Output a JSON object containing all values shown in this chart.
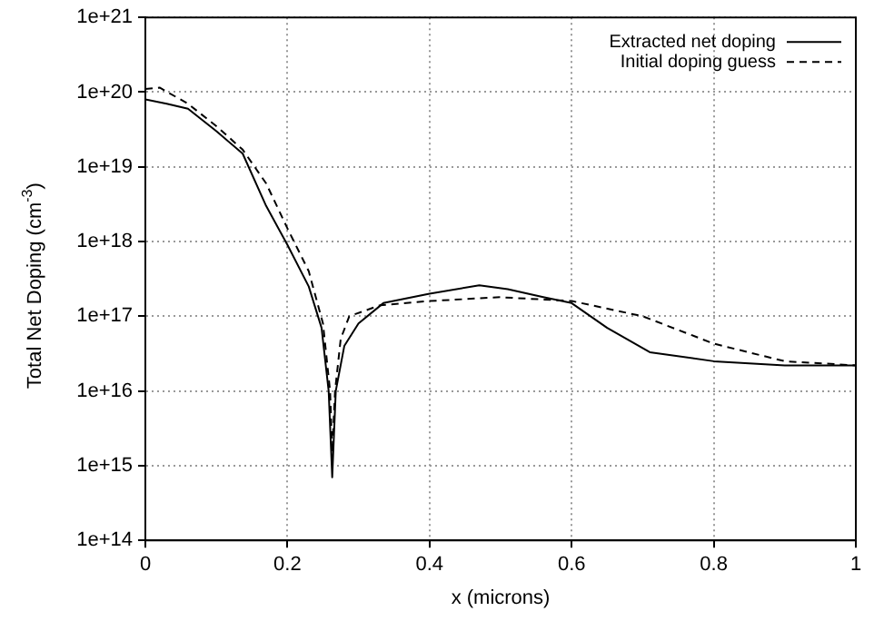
{
  "chart_data": {
    "type": "line",
    "xlabel": "x (microns)",
    "ylabel": "Total Net Doping (cm$^{-3}$)",
    "series": [
      {
        "name": "Extracted net doping",
        "color": "#000000",
        "line_style": "solid",
        "x": [
          0,
          0.03,
          0.06,
          0.1,
          0.137,
          0.17,
          0.2,
          0.23,
          0.248,
          0.258,
          0.263,
          0.268,
          0.28,
          0.3,
          0.335,
          0.4,
          0.47,
          0.51,
          0.56,
          0.6,
          0.65,
          0.71,
          0.8,
          0.9,
          1
        ],
        "values": [
          8e+19,
          7e+19,
          6e+19,
          3e+19,
          1.5e+19,
          3e+18,
          9e+17,
          2.5e+17,
          7e+16,
          1e+16,
          700000000000000.0,
          1e+16,
          4e+16,
          8e+16,
          1.5e+17,
          2e+17,
          2.6e+17,
          2.3e+17,
          1.8e+17,
          1.5e+17,
          7e+16,
          3.3e+16,
          2.5e+16,
          2.2e+16,
          2.2e+16
        ]
      },
      {
        "name": "Initial doping guess",
        "color": "#000000",
        "line_style": "dashed",
        "x": [
          0,
          0.02,
          0.06,
          0.1,
          0.137,
          0.17,
          0.2,
          0.23,
          0.25,
          0.26,
          0.263,
          0.267,
          0.275,
          0.287,
          0.33,
          0.4,
          0.5,
          0.6,
          0.7,
          0.8,
          0.9,
          1
        ],
        "values": [
          1.1e+20,
          1.15e+20,
          7e+19,
          3.5e+19,
          1.7e+19,
          6e+18,
          1.5e+18,
          4e+17,
          8e+16,
          1e+16,
          1500000000000000.0,
          1e+16,
          5e+16,
          1e+17,
          1.4e+17,
          1.6e+17,
          1.8e+17,
          1.6e+17,
          1e+17,
          4.3e+16,
          2.5e+16,
          2.2e+16
        ]
      }
    ],
    "log": "y",
    "xlim": [
      0,
      1
    ],
    "xticks": [
      0,
      0.2,
      0.4,
      0.6,
      0.8,
      1
    ],
    "ylim": [
      100000000000000.0,
      1e+21
    ],
    "yticks": [
      {
        "value": 100000000000000.0,
        "label": "1e+14"
      },
      {
        "value": 1000000000000000.0,
        "label": "1e+15"
      },
      {
        "value": 1e+16,
        "label": "1e+16"
      },
      {
        "value": 1e+17,
        "label": "1e+17"
      },
      {
        "value": 1e+18,
        "label": "1e+18"
      },
      {
        "value": 1e+19,
        "label": "1e+19"
      },
      {
        "value": 1e+20,
        "label": "1e+20"
      },
      {
        "value": 1e+21,
        "label": "1e+21"
      }
    ],
    "grid": true,
    "legend": "top right",
    "marker": "none"
  }
}
